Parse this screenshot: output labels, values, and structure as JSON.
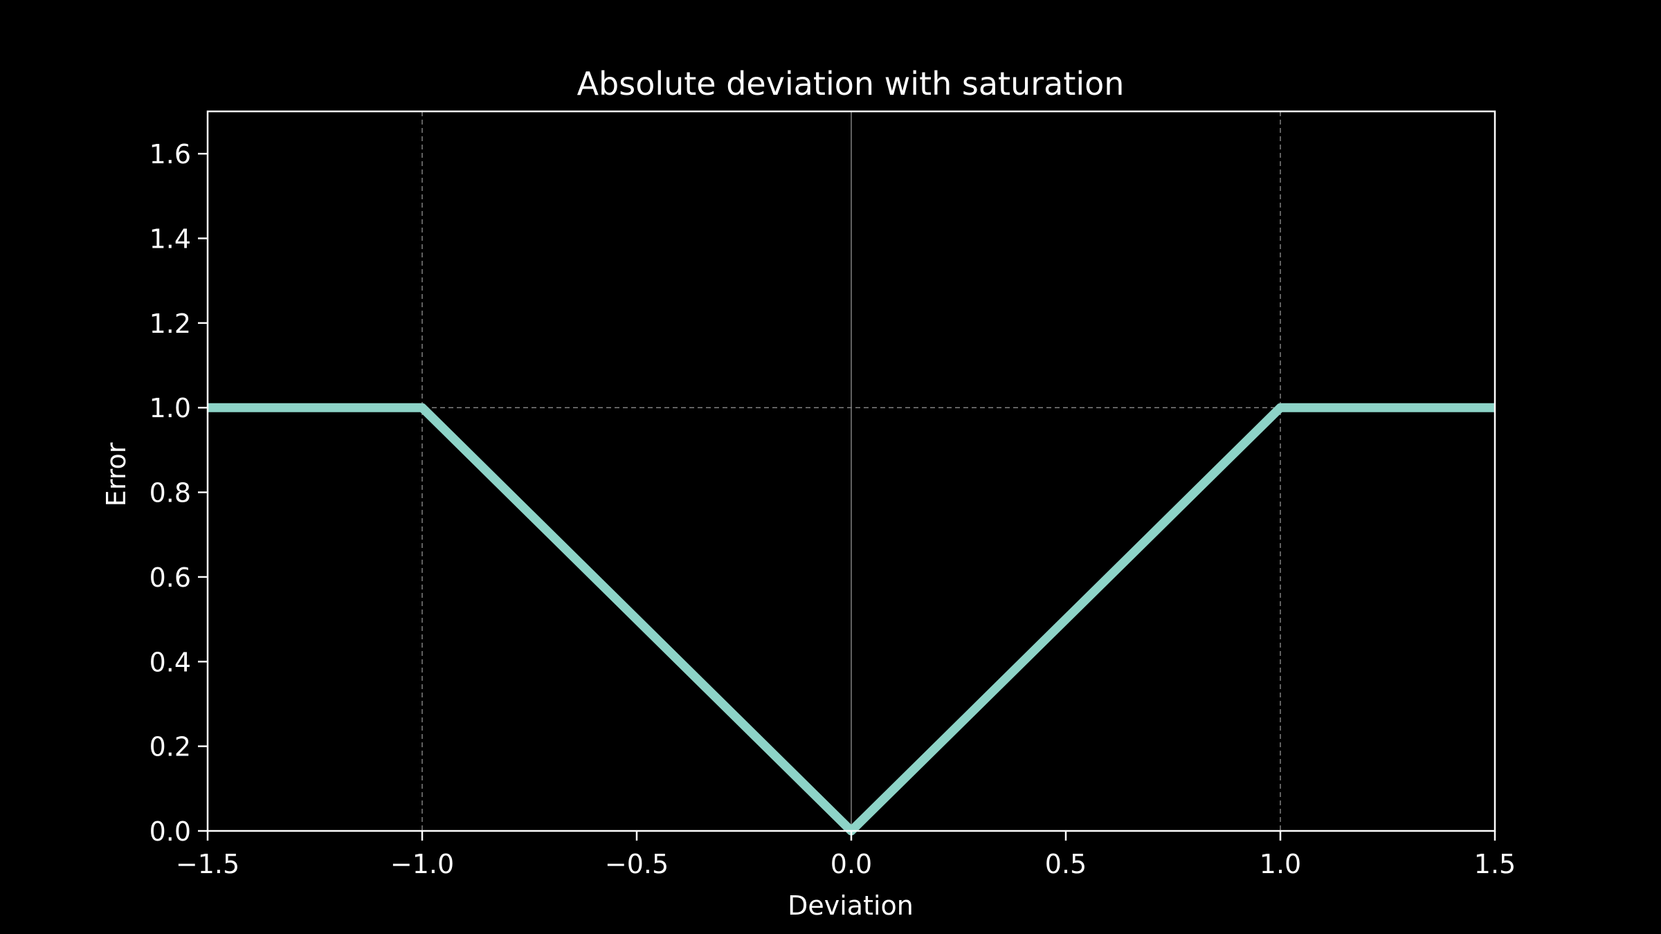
{
  "chart_data": {
    "type": "line",
    "title": "Absolute deviation with saturation",
    "xlabel": "Deviation",
    "ylabel": "Error",
    "xlim": [
      -1.5,
      1.5
    ],
    "ylim": [
      0.0,
      1.7
    ],
    "xticks": [
      -1.5,
      -1.0,
      -0.5,
      0.0,
      0.5,
      1.0,
      1.5
    ],
    "xtick_labels": [
      "−1.5",
      "−1.0",
      "−0.5",
      "0.0",
      "0.5",
      "1.0",
      "1.5"
    ],
    "yticks": [
      0.0,
      0.2,
      0.4,
      0.6,
      0.8,
      1.0,
      1.2,
      1.4,
      1.6
    ],
    "ytick_labels": [
      "0.0",
      "0.2",
      "0.4",
      "0.6",
      "0.8",
      "1.0",
      "1.2",
      "1.4",
      "1.6"
    ],
    "grid": false,
    "reference_lines": {
      "vertical_dashed": [
        -1.0,
        1.0
      ],
      "vertical_solid": [
        0.0
      ],
      "horizontal_dashed": [
        1.0
      ]
    },
    "series": [
      {
        "x": [
          -1.5,
          -1.0,
          0.0,
          1.0,
          1.5
        ],
        "y": [
          1.0,
          1.0,
          0.0,
          1.0,
          1.0
        ],
        "color": "#8dd3c7"
      }
    ],
    "colors": {
      "background": "#000000",
      "foreground": "#ffffff",
      "reference_line": "#808080",
      "series": "#8dd3c7"
    }
  }
}
